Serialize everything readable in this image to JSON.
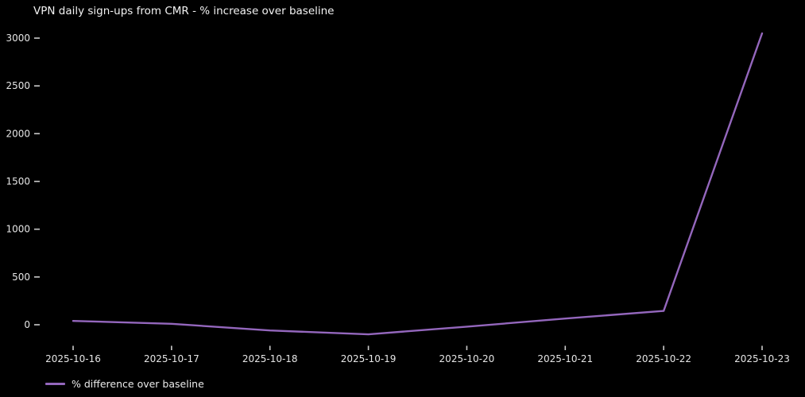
{
  "title": "VPN daily sign-ups from CMR - % increase over baseline",
  "colors": {
    "background": "#000000",
    "line": "#9467bd",
    "text": "#f2f2f2",
    "tick": "#cccccc"
  },
  "legend": {
    "label": "% difference over baseline",
    "position": "bottom-left"
  },
  "chart_data": {
    "type": "line",
    "title": "VPN daily sign-ups from CMR - % increase over baseline",
    "categories": [
      "2025-10-16",
      "2025-10-17",
      "2025-10-18",
      "2025-10-19",
      "2025-10-20",
      "2025-10-21",
      "2025-10-22",
      "2025-10-23"
    ],
    "series": [
      {
        "name": "% difference over baseline",
        "color": "#9467bd",
        "values": [
          40,
          10,
          -60,
          -100,
          -20,
          65,
          145,
          3050
        ]
      }
    ],
    "xlabel": "",
    "ylabel": "",
    "yticks": [
      0,
      500,
      1000,
      1500,
      2000,
      2500,
      3000
    ],
    "ylim": [
      -250,
      3120
    ],
    "grid": false,
    "background": "dark",
    "legend_position": "bottom-left-below-axis"
  }
}
